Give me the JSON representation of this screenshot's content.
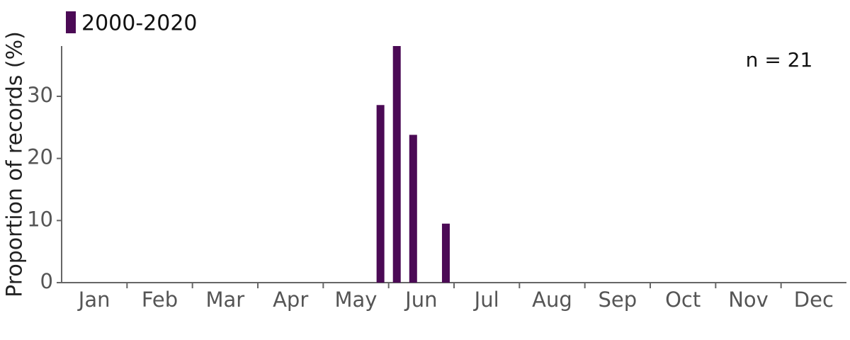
{
  "chart_data": {
    "type": "bar",
    "y_label": "Proportion of records (%)",
    "annotation": "n = 21",
    "x": [
      4.875,
      5.125,
      5.375,
      5.875
    ],
    "series": [
      {
        "name": "2000-2020",
        "color": "#4b0a55",
        "values": [
          28.6,
          38.1,
          23.8,
          9.5
        ]
      }
    ],
    "xlim": [
      0,
      12
    ],
    "xticks": [
      {
        "value": 0.5,
        "label": "Jan"
      },
      {
        "value": 1.5,
        "label": "Feb"
      },
      {
        "value": 2.5,
        "label": "Mar"
      },
      {
        "value": 3.5,
        "label": "Apr"
      },
      {
        "value": 4.5,
        "label": "May"
      },
      {
        "value": 5.5,
        "label": "Jun"
      },
      {
        "value": 6.5,
        "label": "Jul"
      },
      {
        "value": 7.5,
        "label": "Aug"
      },
      {
        "value": 8.5,
        "label": "Sep"
      },
      {
        "value": 9.5,
        "label": "Oct"
      },
      {
        "value": 10.5,
        "label": "Nov"
      },
      {
        "value": 11.5,
        "label": "Dec"
      }
    ],
    "ylim": [
      0,
      38.1
    ],
    "yticks": [
      0,
      10,
      20,
      30
    ]
  }
}
